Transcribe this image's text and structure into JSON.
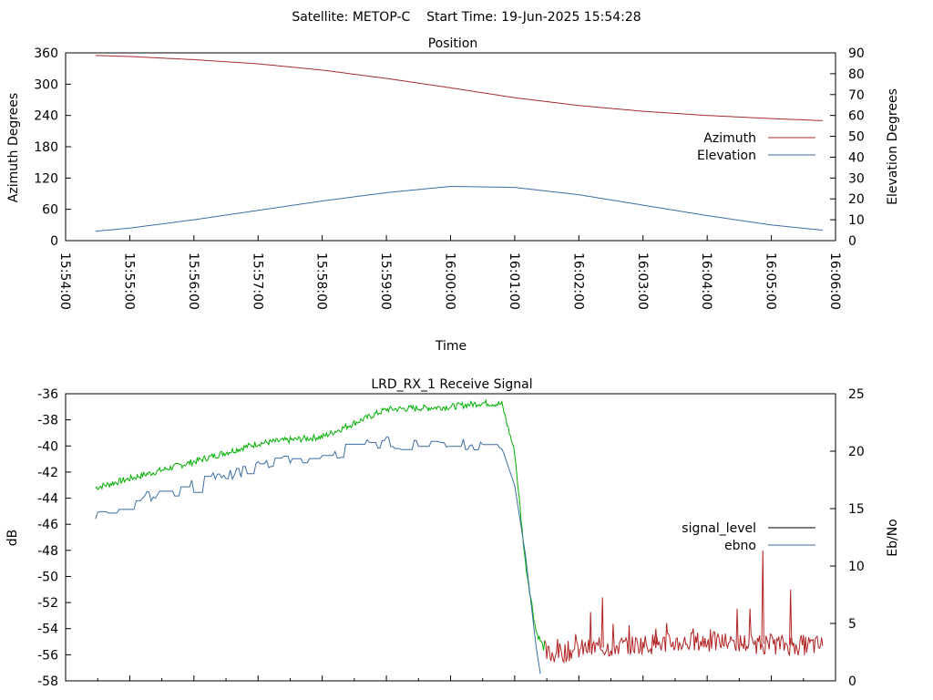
{
  "header": {
    "title": "Satellite: METOP-C    Start Time: 19-Jun-2025 15:54:28"
  },
  "chart_data": [
    {
      "type": "line",
      "title": "Position",
      "xlabel": "Time",
      "ylabel": "Azimuth Degrees",
      "y2label": "Elevation Degrees",
      "ylim": [
        0,
        360
      ],
      "y2lim": [
        0,
        90
      ],
      "yticks": [
        "0",
        "60",
        "120",
        "180",
        "240",
        "300",
        "360"
      ],
      "y2ticks": [
        "0",
        "10",
        "20",
        "30",
        "40",
        "50",
        "60",
        "70",
        "80",
        "90"
      ],
      "xticks": [
        "15:54:00",
        "15:55:00",
        "15:56:00",
        "15:57:00",
        "15:58:00",
        "15:59:00",
        "16:00:00",
        "16:01:00",
        "16:02:00",
        "16:03:00",
        "16:04:00",
        "16:05:00",
        "16:06:00"
      ],
      "grid": false,
      "legend": "right",
      "series": [
        {
          "name": "Azimuth",
          "axis": "left",
          "color": "#a52a2a",
          "x": [
            "15:54:28",
            "15:55:00",
            "15:56:00",
            "15:57:00",
            "15:58:00",
            "15:59:00",
            "16:00:00",
            "16:01:00",
            "16:02:00",
            "16:03:00",
            "16:04:00",
            "16:05:00",
            "16:05:48"
          ],
          "y": [
            355,
            353,
            347,
            339,
            327,
            311,
            293,
            274,
            259,
            248,
            240,
            234,
            230
          ]
        },
        {
          "name": "Elevation",
          "axis": "right",
          "color": "#3b6ea5",
          "x": [
            "15:54:28",
            "15:55:00",
            "15:56:00",
            "15:57:00",
            "15:58:00",
            "15:59:00",
            "16:00:00",
            "16:01:00",
            "16:02:00",
            "16:03:00",
            "16:04:00",
            "16:05:00",
            "16:05:48"
          ],
          "y": [
            4.5,
            6,
            10,
            14.5,
            19,
            23,
            26,
            25.5,
            22,
            17,
            12,
            7.5,
            5
          ]
        }
      ]
    },
    {
      "type": "line",
      "title": "LRD_RX_1 Receive Signal",
      "xlabel": "",
      "ylabel": "dB",
      "y2label": "Eb/No",
      "ylim": [
        -58,
        -36
      ],
      "y2lim": [
        0,
        25
      ],
      "yticks": [
        "-58",
        "-56",
        "-54",
        "-52",
        "-50",
        "-48",
        "-46",
        "-44",
        "-42",
        "-40",
        "-38",
        "-36"
      ],
      "y2ticks": [
        "0",
        "5",
        "10",
        "15",
        "20",
        "25"
      ],
      "grid": false,
      "legend": "right",
      "series": [
        {
          "name": "signal_level",
          "axis": "left",
          "legend_color": "#000000",
          "color_before_los": "#00b000",
          "color_after_los": "#b22222",
          "x": [
            "15:54:28",
            "15:55:00",
            "15:56:00",
            "15:57:00",
            "15:58:00",
            "15:59:00",
            "16:00:00",
            "16:00:30",
            "16:00:48",
            "16:01:00",
            "16:01:10",
            "16:01:20",
            "16:01:30",
            "16:02:00",
            "16:03:00",
            "16:04:00",
            "16:05:00",
            "16:05:48"
          ],
          "y": [
            -43.2,
            -42.5,
            -41.2,
            -39.8,
            -39.3,
            -37.2,
            -37.0,
            -36.7,
            -36.8,
            -40.5,
            -49.0,
            -54.2,
            -56.0,
            -55.6,
            -55.2,
            -55.0,
            -55.2,
            -55.3
          ]
        },
        {
          "name": "ebno",
          "axis": "right",
          "color": "#3b6ea5",
          "x": [
            "15:54:28",
            "15:55:00",
            "15:56:00",
            "15:57:00",
            "15:58:00",
            "15:59:00",
            "16:00:00",
            "16:00:30",
            "16:00:48",
            "16:01:00",
            "16:01:10",
            "16:01:20",
            "16:01:25"
          ],
          "y": [
            14.5,
            15.5,
            17.0,
            18.8,
            19.6,
            20.8,
            20.5,
            20.8,
            20.3,
            17.0,
            11.0,
            3.0,
            0.0
          ]
        }
      ]
    }
  ]
}
